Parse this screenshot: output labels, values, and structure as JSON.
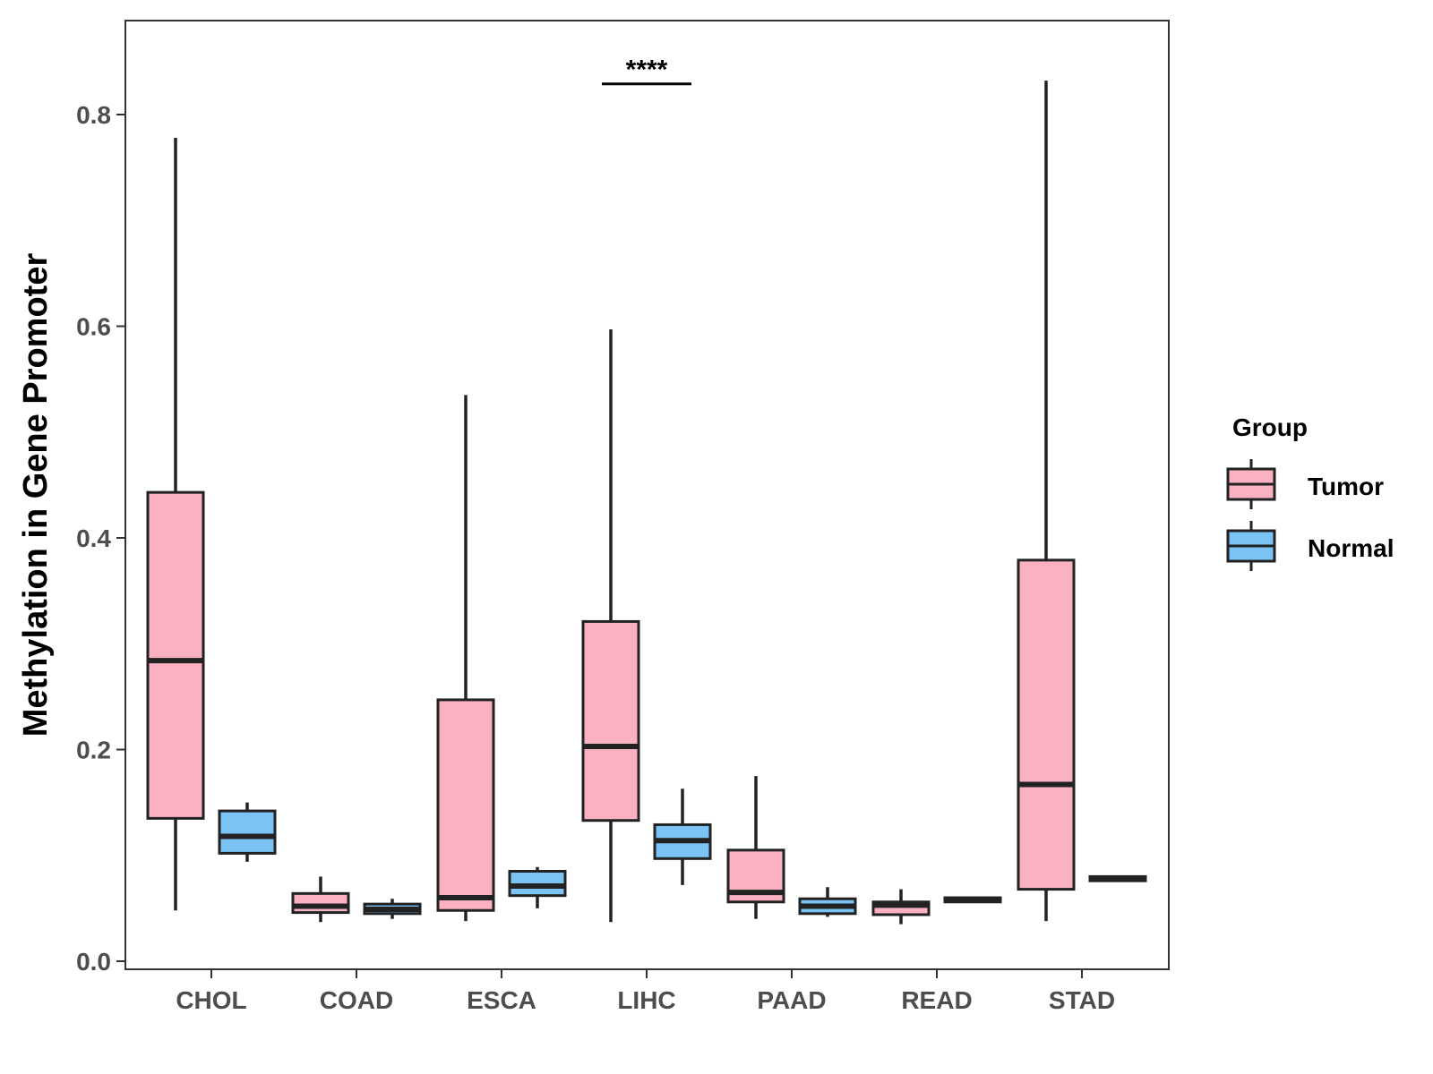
{
  "chart_data": {
    "type": "boxplot",
    "title": "",
    "xlabel": "",
    "ylabel": "Methylation in Gene Promoter",
    "ylim": [
      -0.01,
      0.89
    ],
    "yticks": [
      0.0,
      0.2,
      0.4,
      0.6,
      0.8
    ],
    "ytick_labels": [
      "0.0",
      "0.2",
      "0.4",
      "0.6",
      "0.8"
    ],
    "categories": [
      "CHOL",
      "COAD",
      "ESCA",
      "LIHC",
      "PAAD",
      "READ",
      "STAD"
    ],
    "legend": {
      "title": "Group",
      "position": "right",
      "entries": [
        {
          "name": "Tumor",
          "color": "#fbb1c2"
        },
        {
          "name": "Normal",
          "color": "#7bc3f5"
        }
      ]
    },
    "series": [
      {
        "name": "Tumor",
        "color": "#fbb1c2",
        "boxes": [
          {
            "min": 0.048,
            "q1": 0.135,
            "median": 0.284,
            "q3": 0.443,
            "max": 0.778
          },
          {
            "min": 0.037,
            "q1": 0.046,
            "median": 0.052,
            "q3": 0.064,
            "max": 0.08
          },
          {
            "min": 0.038,
            "q1": 0.048,
            "median": 0.06,
            "q3": 0.247,
            "max": 0.535
          },
          {
            "min": 0.037,
            "q1": 0.133,
            "median": 0.203,
            "q3": 0.321,
            "max": 0.597
          },
          {
            "min": 0.04,
            "q1": 0.056,
            "median": 0.065,
            "q3": 0.105,
            "max": 0.175
          },
          {
            "min": 0.035,
            "q1": 0.044,
            "median": 0.053,
            "q3": 0.056,
            "max": 0.068
          },
          {
            "min": 0.038,
            "q1": 0.068,
            "median": 0.167,
            "q3": 0.379,
            "max": 0.832
          }
        ]
      },
      {
        "name": "Normal",
        "color": "#7bc3f5",
        "boxes": [
          {
            "min": 0.094,
            "q1": 0.102,
            "median": 0.118,
            "q3": 0.142,
            "max": 0.15
          },
          {
            "min": 0.04,
            "q1": 0.045,
            "median": 0.049,
            "q3": 0.054,
            "max": 0.059
          },
          {
            "min": 0.05,
            "q1": 0.062,
            "median": 0.071,
            "q3": 0.085,
            "max": 0.089
          },
          {
            "min": 0.072,
            "q1": 0.097,
            "median": 0.114,
            "q3": 0.129,
            "max": 0.163
          },
          {
            "min": 0.042,
            "q1": 0.045,
            "median": 0.052,
            "q3": 0.059,
            "max": 0.07
          },
          {
            "min": 0.056,
            "q1": 0.056,
            "median": 0.058,
            "q3": 0.06,
            "max": 0.06
          },
          {
            "min": 0.076,
            "q1": 0.076,
            "median": 0.078,
            "q3": 0.08,
            "max": 0.08
          }
        ]
      }
    ],
    "annotations": [
      {
        "category": "LIHC",
        "label": "****",
        "y": 0.829
      }
    ]
  }
}
